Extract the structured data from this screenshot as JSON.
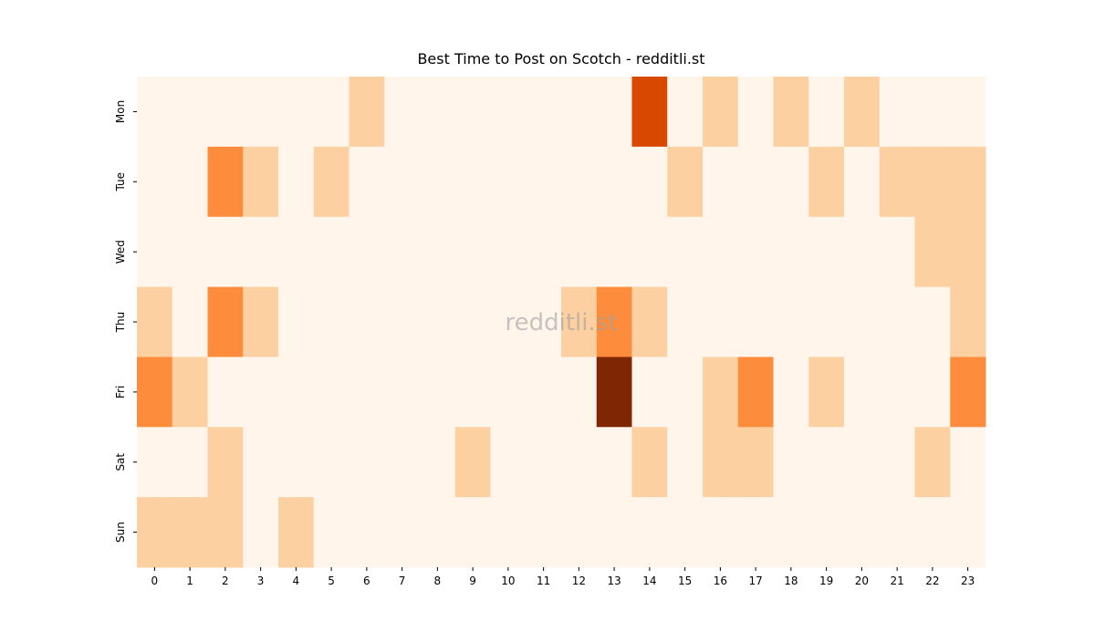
{
  "chart_data": {
    "type": "heatmap",
    "title": "Best Time to Post on Scotch - redditli.st",
    "watermark": "redditli.st",
    "x": [
      0,
      1,
      2,
      3,
      4,
      5,
      6,
      7,
      8,
      9,
      10,
      11,
      12,
      13,
      14,
      15,
      16,
      17,
      18,
      19,
      20,
      21,
      22,
      23
    ],
    "y": [
      "Mon",
      "Tue",
      "Wed",
      "Thu",
      "Fri",
      "Sat",
      "Sun"
    ],
    "values": [
      [
        0,
        0,
        0,
        0,
        0,
        0,
        1,
        0,
        0,
        0,
        0,
        0,
        0,
        0,
        3,
        0,
        1,
        0,
        1,
        0,
        1,
        0,
        0,
        0
      ],
      [
        0,
        0,
        2,
        1,
        0,
        1,
        0,
        0,
        0,
        0,
        0,
        0,
        0,
        0,
        0,
        1,
        0,
        0,
        0,
        1,
        0,
        1,
        1,
        1
      ],
      [
        0,
        0,
        0,
        0,
        0,
        0,
        0,
        0,
        0,
        0,
        0,
        0,
        0,
        0,
        0,
        0,
        0,
        0,
        0,
        0,
        0,
        0,
        1,
        1
      ],
      [
        1,
        0,
        2,
        1,
        0,
        0,
        0,
        0,
        0,
        0,
        0,
        0,
        1,
        2,
        1,
        0,
        0,
        0,
        0,
        0,
        0,
        0,
        0,
        1
      ],
      [
        2,
        1,
        0,
        0,
        0,
        0,
        0,
        0,
        0,
        0,
        0,
        0,
        0,
        4,
        0,
        0,
        1,
        2,
        0,
        1,
        0,
        0,
        0,
        2
      ],
      [
        0,
        0,
        1,
        0,
        0,
        0,
        0,
        0,
        0,
        1,
        0,
        0,
        0,
        0,
        1,
        0,
        1,
        1,
        0,
        0,
        0,
        0,
        1,
        0
      ],
      [
        1,
        1,
        1,
        0,
        1,
        0,
        0,
        0,
        0,
        0,
        0,
        0,
        0,
        0,
        0,
        0,
        0,
        0,
        0,
        0,
        0,
        0,
        0,
        0
      ]
    ],
    "colors": [
      "#fff5eb",
      "#fdd0a2",
      "#fd8d3c",
      "#d94801",
      "#7f2704"
    ]
  }
}
